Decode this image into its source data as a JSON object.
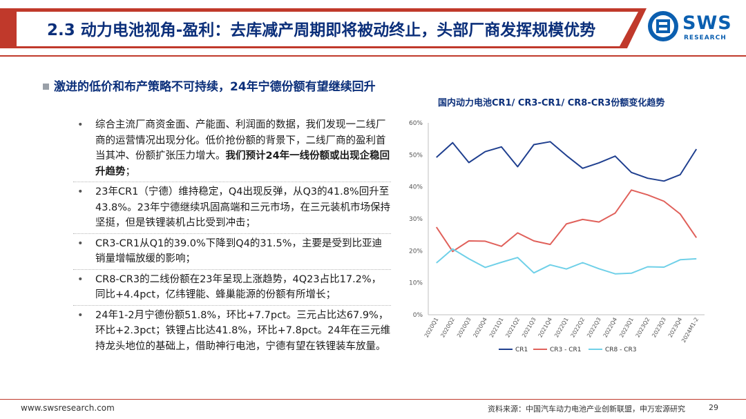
{
  "header": {
    "title": "2.3 动力电池视角-盈利：去库减产周期即将被动终止，头部厂商发挥规模优势",
    "logo_text": "SWS",
    "logo_sub": "RESEARCH"
  },
  "lead": "激进的低价和布产策略不可持续，24年宁德份额有望继续回升",
  "items": [
    {
      "text": "综合主流厂商资金面、产能面、利润面的数据，我们发现一二线厂商的运营情况出现分化。低价抢份额的背景下，二线厂商的盈利首当其冲、份额扩张压力增大。",
      "bold": "我们预计24年一线份额或出现企稳回升趋势",
      "tail": "；"
    },
    {
      "text": "23年CR1（宁德）维持稳定，Q4出现反弹，从Q3的41.8%回升至43.8%。23年宁德继续巩固高端和三元市场，在三元装机市场保持坚挺，但是铁锂装机占比受到冲击；",
      "bold": "",
      "tail": ""
    },
    {
      "text": "CR3-CR1从Q1的39.0%下降到Q4的31.5%，主要是受到比亚迪销量增幅放缓的影响；",
      "bold": "",
      "tail": ""
    },
    {
      "text": "CR8-CR3的二线份额在23年呈现上涨趋势，4Q23占比17.2%，同比+4.4pct，亿纬锂能、蜂巢能源的份额有所增长；",
      "bold": "",
      "tail": ""
    },
    {
      "text": "24年1-2月宁德份额51.8%，环比+7.7pct。三元占比达67.9%，环比+2.3pct；铁锂占比达41.8%，环比+7.8pct。24年在三元维持龙头地位的基础上，借助神行电池，宁德有望在铁锂装车放量。",
      "bold": "",
      "tail": ""
    }
  ],
  "chart_data": {
    "type": "line",
    "title": "国内动力电池CR1/ CR3-CR1/ CR8-CR3份额变化趋势",
    "categories": [
      "2020Q1",
      "2020Q2",
      "2020Q3",
      "2020Q4",
      "2021Q1",
      "2021Q2",
      "2021Q3",
      "2021Q4",
      "2022Q1",
      "2022Q2",
      "2022Q3",
      "2022Q4",
      "2023Q1",
      "2023Q2",
      "2023Q3",
      "2023Q4",
      "2024M1-2"
    ],
    "y_ticks": [
      "0%",
      "10%",
      "20%",
      "30%",
      "40%",
      "50%",
      "60%"
    ],
    "ylim": [
      0,
      60
    ],
    "series": [
      {
        "name": "CR1",
        "color": "#1f3f8f",
        "values": [
          49.2,
          53.8,
          47.6,
          51.0,
          52.5,
          46.3,
          53.2,
          54.1,
          49.8,
          45.8,
          47.5,
          49.6,
          44.5,
          42.7,
          41.8,
          43.8,
          51.8
        ]
      },
      {
        "name": "CR3 - CR1",
        "color": "#e0605a",
        "values": [
          27.4,
          19.8,
          23.1,
          23.0,
          21.4,
          25.6,
          23.1,
          22.0,
          28.4,
          29.8,
          29.0,
          31.8,
          39.0,
          37.5,
          35.5,
          31.5,
          24.1
        ]
      },
      {
        "name": "CR8 - CR3",
        "color": "#6fd0e8",
        "values": [
          16.2,
          20.6,
          17.5,
          14.8,
          16.4,
          17.9,
          13.1,
          15.6,
          14.3,
          16.3,
          14.4,
          12.8,
          13.0,
          15.0,
          14.9,
          17.2,
          17.5
        ]
      }
    ]
  },
  "footer": {
    "url": "www.swsresearch.com",
    "source": "资料来源：中国汽车动力电池产业创新联盟，申万宏源研究",
    "page": "29"
  }
}
